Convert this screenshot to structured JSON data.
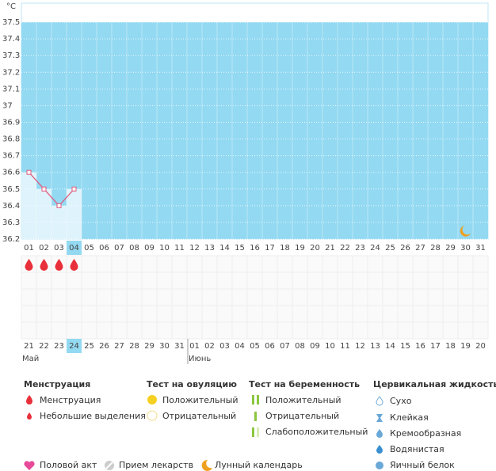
{
  "chart_data": {
    "type": "line",
    "y_label": "°C",
    "categories": [
      "01",
      "02",
      "03",
      "04",
      "05",
      "06",
      "07",
      "08",
      "09",
      "10",
      "11",
      "12",
      "13",
      "14",
      "15",
      "16",
      "17",
      "18",
      "19",
      "20",
      "21",
      "22",
      "23",
      "24",
      "25",
      "26",
      "27",
      "28",
      "29",
      "30",
      "31"
    ],
    "values": [
      36.6,
      36.5,
      36.4,
      36.5,
      null,
      null,
      null,
      null,
      null,
      null,
      null,
      null,
      null,
      null,
      null,
      null,
      null,
      null,
      null,
      null,
      null,
      null,
      null,
      null,
      null,
      null,
      null,
      null,
      null,
      null,
      null
    ],
    "color": "#e0587a",
    "ylim": [
      36.2,
      37.6
    ],
    "yticks": [
      36.2,
      36.3,
      36.4,
      36.5,
      36.6,
      36.7,
      36.8,
      36.9,
      37,
      37.1,
      37.2,
      37.3,
      37.4,
      37.5
    ],
    "grid": true
  },
  "dates": [
    {
      "label": "21"
    },
    {
      "label": "22",
      "weekend": true
    },
    {
      "label": "23",
      "weekend": true
    },
    {
      "label": "24"
    },
    {
      "label": "25"
    },
    {
      "label": "26"
    },
    {
      "label": "27"
    },
    {
      "label": "28"
    },
    {
      "label": "29",
      "weekend": true
    },
    {
      "label": "30",
      "weekend": true
    },
    {
      "label": "31"
    },
    {
      "label": "01"
    },
    {
      "label": "02"
    },
    {
      "label": "03"
    },
    {
      "label": "04"
    },
    {
      "label": "05",
      "weekend": true
    },
    {
      "label": "06",
      "weekend": true
    },
    {
      "label": "07"
    },
    {
      "label": "08"
    },
    {
      "label": "09"
    },
    {
      "label": "10"
    },
    {
      "label": "11"
    },
    {
      "label": "12",
      "weekend": true
    },
    {
      "label": "13",
      "weekend": true
    },
    {
      "label": "14"
    },
    {
      "label": "15"
    },
    {
      "label": "16"
    },
    {
      "label": "17"
    },
    {
      "label": "18"
    },
    {
      "label": "19",
      "weekend": true
    },
    {
      "label": "20",
      "weekend": true
    }
  ],
  "months": [
    "Май",
    "Июнь"
  ],
  "legend": {
    "menstruation": {
      "title": "Менструация",
      "items": [
        "Менструация",
        "Небольшие выделения"
      ]
    },
    "ovulation": {
      "title": "Тест на овуляцию",
      "items": [
        "Положительный",
        "Отрицательный"
      ]
    },
    "pregnancy": {
      "title": "Тест на беременность",
      "items": [
        "Положительный",
        "Отрицательный",
        "Слабоположительный"
      ]
    },
    "cervical": {
      "title": "Цервикальная жидкость",
      "items": [
        "Сухо",
        "Клейкая",
        "Кремообразная",
        "Водянистая",
        "Яичный белок"
      ]
    },
    "other": [
      "Половой акт",
      "Прием лекарств",
      "Лунный календарь"
    ]
  }
}
